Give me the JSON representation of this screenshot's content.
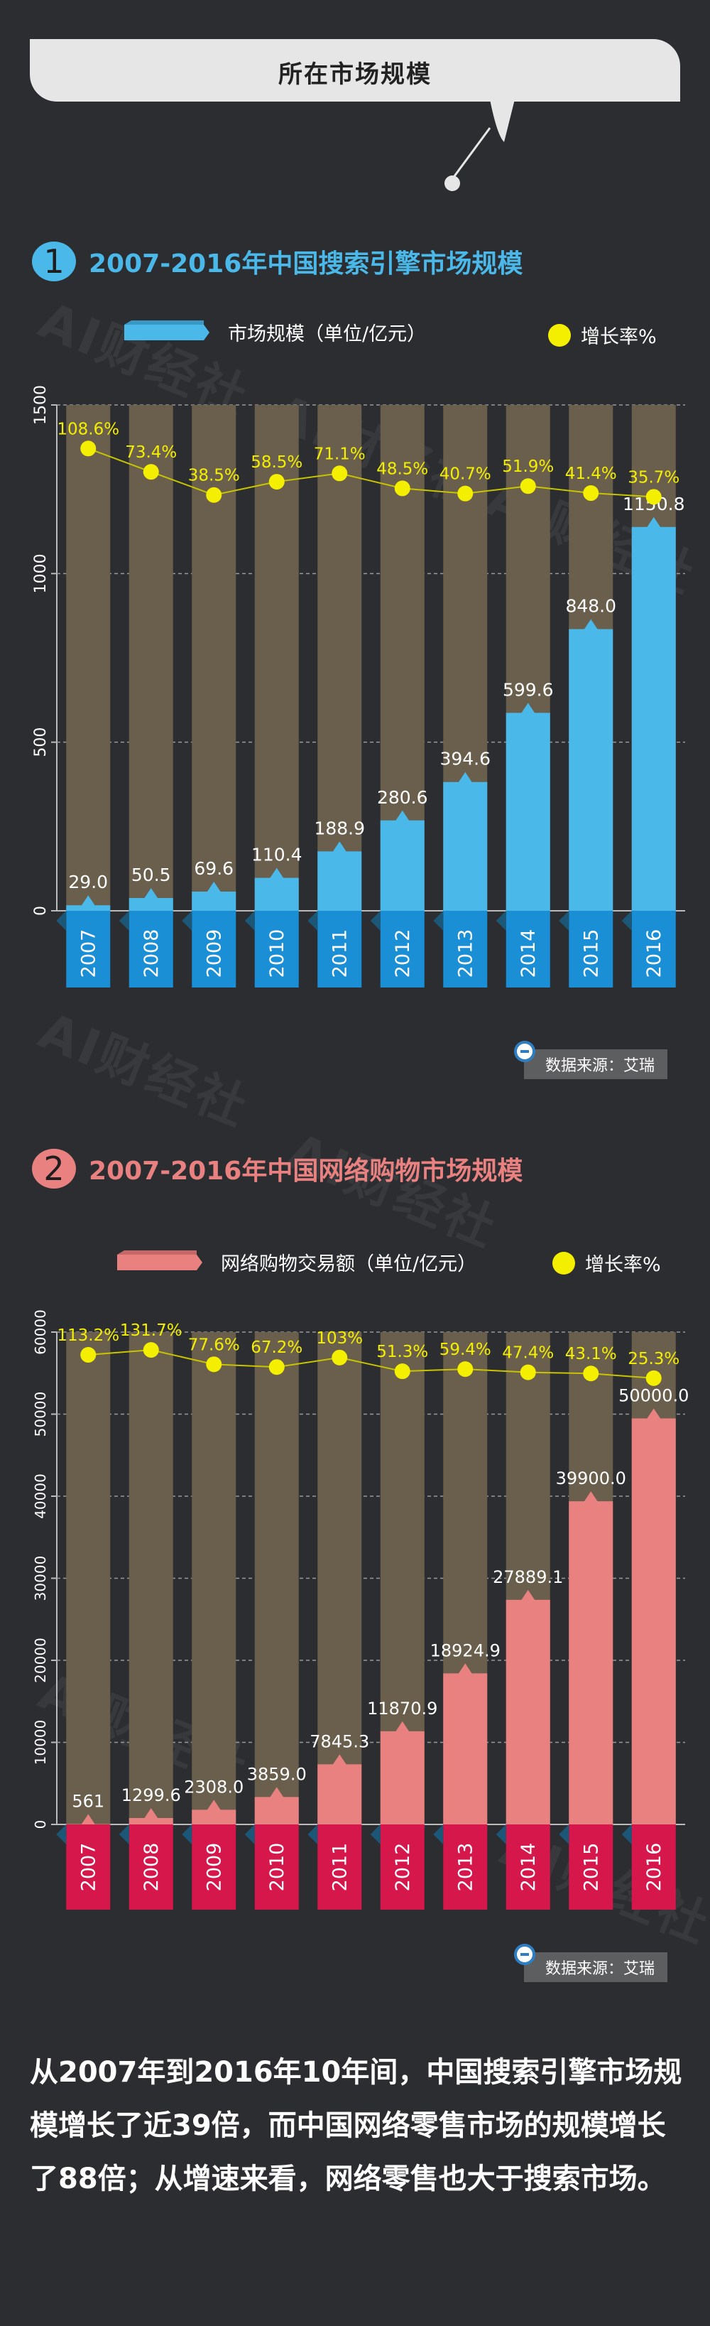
{
  "header": {
    "title": "所在市场规模"
  },
  "watermark": "AI财经社",
  "charts": [
    {
      "number": "1",
      "title": "2007-2016年中国搜索引擎市场规模",
      "legend_bar": "市场规模（单位/亿元）",
      "legend_rate": "增长率%",
      "source": "数据来源：艾瑞"
    },
    {
      "number": "2",
      "title": "2007-2016年中国网络购物市场规模",
      "legend_bar": "网络购物交易额（单位/亿元）",
      "legend_rate": "增长率%",
      "source": "数据来源：艾瑞"
    }
  ],
  "chart_data": [
    {
      "type": "bar",
      "title": "2007-2016年中国搜索引擎市场规模",
      "categories": [
        "2007",
        "2008",
        "2009",
        "2010",
        "2011",
        "2012",
        "2013",
        "2014",
        "2015",
        "2016"
      ],
      "series": [
        {
          "name": "市场规模（单位/亿元）",
          "values": [
            29.0,
            50.5,
            69.6,
            110.4,
            188.9,
            280.6,
            394.6,
            599.6,
            848.0,
            1150.8
          ]
        },
        {
          "name": "增长率%",
          "values": [
            108.6,
            73.4,
            38.5,
            58.5,
            71.1,
            48.5,
            40.7,
            51.9,
            41.4,
            35.7
          ]
        }
      ],
      "value_labels": [
        "29.0",
        "50.5",
        "69.6",
        "110.4",
        "188.9",
        "280.6",
        "394.6",
        "599.6",
        "848.0",
        "1150.8"
      ],
      "rate_labels": [
        "108.6%",
        "73.4%",
        "38.5%",
        "58.5%",
        "71.1%",
        "48.5%",
        "40.7%",
        "51.9%",
        "41.4%",
        "35.7%"
      ],
      "ylim": [
        0,
        1500
      ],
      "yticks": [
        "0",
        "500",
        "1000",
        "1500"
      ],
      "bar_color": "#4ab8e8",
      "label_color": "#1a8fd6",
      "rate_color": "#f4ef00"
    },
    {
      "type": "bar",
      "title": "2007-2016年中国网络购物市场规模",
      "categories": [
        "2007",
        "2008",
        "2009",
        "2010",
        "2011",
        "2012",
        "2013",
        "2014",
        "2015",
        "2016"
      ],
      "series": [
        {
          "name": "网络购物交易额（单位/亿元）",
          "values": [
            561,
            1299.6,
            2308.0,
            3859.0,
            7845.3,
            11870.9,
            18924.9,
            27889.1,
            39900.0,
            50000.0
          ]
        },
        {
          "name": "增长率%",
          "values": [
            113.2,
            131.7,
            77.6,
            67.2,
            103,
            51.3,
            59.4,
            47.4,
            43.1,
            25.3
          ]
        }
      ],
      "value_labels": [
        "561",
        "1299.6",
        "2308.0",
        "3859.0",
        "7845.3",
        "11870.9",
        "18924.9",
        "27889.1",
        "39900.0",
        "50000.0"
      ],
      "rate_labels": [
        "113.2%",
        "131.7%",
        "77.6%",
        "67.2%",
        "103%",
        "51.3%",
        "59.4%",
        "47.4%",
        "43.1%",
        "25.3%"
      ],
      "ylim": [
        0,
        60000
      ],
      "yticks": [
        "0",
        "10000",
        "20000",
        "30000",
        "40000",
        "50000",
        "60000"
      ],
      "bar_color": "#e98181",
      "label_color": "#d6174c",
      "rate_color": "#f4ef00"
    }
  ],
  "summary": "从2007年到2016年10年间，中国搜索引擎市场规模增长了近39倍，而中国网络零售市场的规模增长了88倍；从增速来看，网络零售也大于搜索市场。"
}
